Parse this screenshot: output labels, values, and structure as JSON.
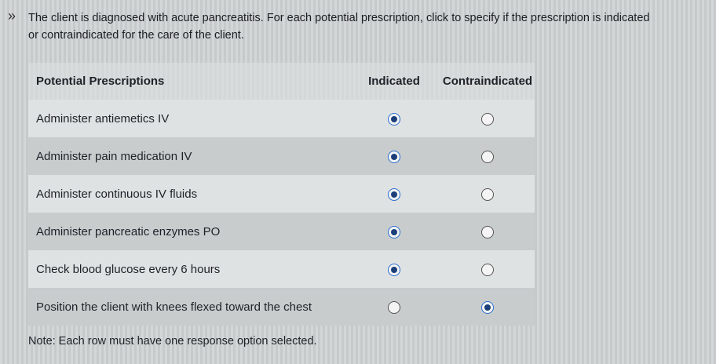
{
  "question": {
    "text_line1": "The client is diagnosed with acute pancreatitis.  For each potential prescription, click to specify if the prescription is indicated",
    "text_line2": "or contraindicated for the care of the client."
  },
  "table": {
    "headers": [
      "Potential Prescriptions",
      "Indicated",
      "Contraindicated"
    ],
    "rows": [
      {
        "label": "Administer antiemetics IV",
        "selected": "indicated"
      },
      {
        "label": "Administer pain medication IV",
        "selected": "indicated"
      },
      {
        "label": "Administer continuous IV fluids",
        "selected": "indicated"
      },
      {
        "label": "Administer pancreatic enzymes PO",
        "selected": "indicated"
      },
      {
        "label": "Check blood glucose every 6 hours",
        "selected": "indicated"
      },
      {
        "label": "Position the client with knees flexed toward the chest",
        "selected": "contraindicated"
      }
    ]
  },
  "note": "Note:  Each row must have one response option selected."
}
